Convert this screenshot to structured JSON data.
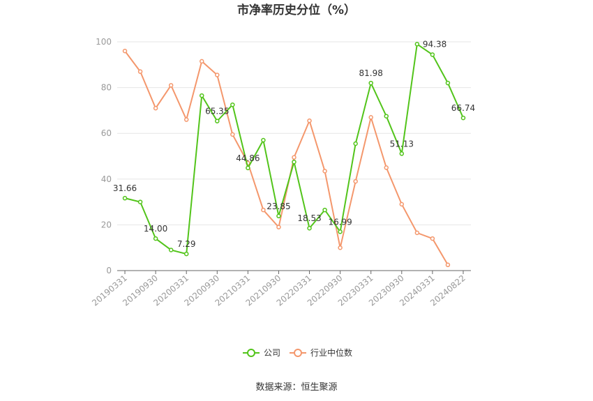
{
  "chart_data": {
    "type": "line",
    "title": "市净率历史分位（%）",
    "source": "数据来源：恒生聚源",
    "ylim": [
      0,
      100
    ],
    "yticks": [
      0,
      20,
      40,
      60,
      80,
      100
    ],
    "grid": true,
    "legend_position": "bottom",
    "x": [
      "20190331",
      "20190630",
      "20190930",
      "20191231",
      "20200331",
      "20200630",
      "20200930",
      "20201231",
      "20210331",
      "20210630",
      "20210930",
      "20211231",
      "20220331",
      "20220630",
      "20220930",
      "20221231",
      "20230331",
      "20230630",
      "20230930",
      "20231231",
      "20240331",
      "20240630",
      "20240822"
    ],
    "xtick_labels": [
      "20190331",
      "20190930",
      "20200331",
      "20200930",
      "20210331",
      "20210930",
      "20220331",
      "20220930",
      "20230331",
      "20230930",
      "20240331",
      "20240822"
    ],
    "series": [
      {
        "name": "公司",
        "color": "#52c41a",
        "values": [
          31.66,
          30.0,
          14.0,
          9.0,
          7.29,
          76.5,
          65.35,
          72.5,
          44.86,
          57.0,
          23.85,
          47.5,
          18.53,
          26.5,
          16.99,
          55.5,
          81.98,
          67.5,
          51.13,
          99.0,
          94.38,
          82.0,
          66.74
        ],
        "labels": {
          "0": "31.66",
          "2": "14.00",
          "4": "7.29",
          "6": "65.35",
          "8": "44.86",
          "10": "23.85",
          "12": "18.53",
          "14": "16.99",
          "16": "81.98",
          "18": "51.13",
          "20": "94.38",
          "22": "66.74"
        }
      },
      {
        "name": "行业中位数",
        "color": "#f4976c",
        "values": [
          96.0,
          87.0,
          71.0,
          81.0,
          66.0,
          91.5,
          85.5,
          59.5,
          47.0,
          26.5,
          19.0,
          49.5,
          65.5,
          43.5,
          10.0,
          39.0,
          67.0,
          45.0,
          29.0,
          16.5,
          14.0,
          2.5,
          null
        ]
      }
    ]
  }
}
